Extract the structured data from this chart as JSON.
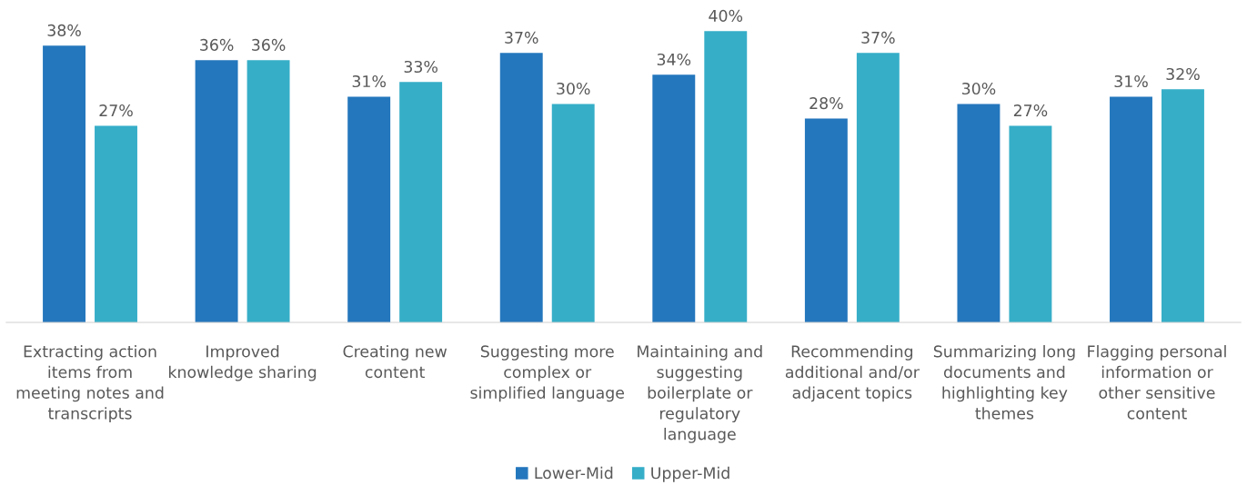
{
  "chart_data": {
    "type": "bar",
    "categories": [
      "Extracting action\nitems from\nmeeting notes and\ntranscripts",
      "Improved\nknowledge sharing",
      "Creating new\ncontent",
      "Suggesting more\ncomplex or\nsimplified language",
      "Maintaining and\nsuggesting\nboilerplate or\nregulatory\nlanguage",
      "Recommending\nadditional and/or\nadjacent topics",
      "Summarizing long\ndocuments and\nhighlighting key\nthemes",
      "Flagging personal\ninformation or\nother sensitive\ncontent"
    ],
    "series": [
      {
        "name": "Lower-Mid",
        "color": "#2477bd",
        "values": [
          38,
          36,
          31,
          37,
          34,
          28,
          30,
          31
        ],
        "value_labels": [
          "38%",
          "36%",
          "31%",
          "37%",
          "34%",
          "28%",
          "30%",
          "31%"
        ]
      },
      {
        "name": "Upper-Mid",
        "color": "#36aec8",
        "values": [
          27,
          36,
          33,
          30,
          40,
          37,
          27,
          32
        ],
        "value_labels": [
          "27%",
          "36%",
          "33%",
          "30%",
          "40%",
          "37%",
          "27%",
          "32%"
        ]
      }
    ],
    "grid": false,
    "legend": "bottom"
  }
}
